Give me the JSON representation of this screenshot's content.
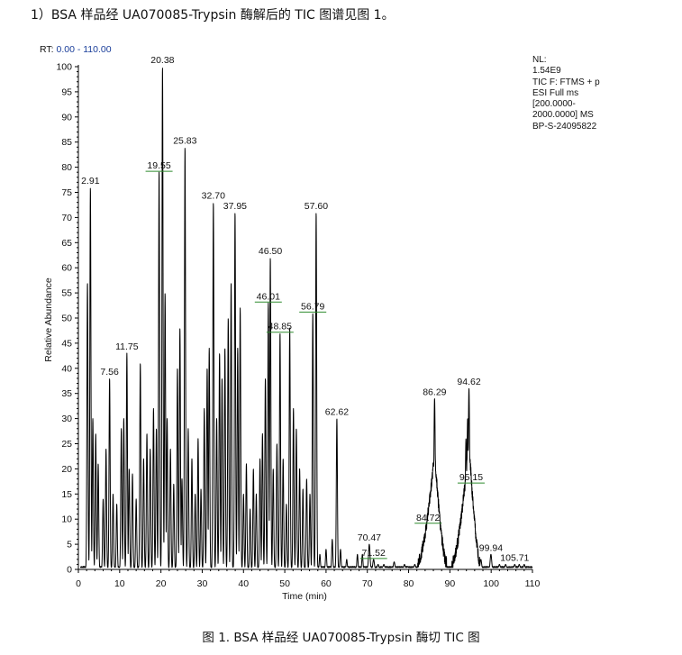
{
  "heading": "1）BSA 样品经 UA070085-Trypsin 酶解后的 TIC 图谱见图 1。",
  "caption": "图 1. BSA 样品经 UA070085-Trypsin 酶切 TIC 图",
  "rt_range": {
    "label": "RT:",
    "value": "0.00 - 110.00"
  },
  "info_block": [
    "NL:",
    "1.54E9",
    "TIC F: FTMS + p",
    "ESI Full ms",
    "[200.0000-",
    "2000.0000] MS",
    "BP-S-24095822"
  ],
  "chart_data": {
    "type": "line",
    "xlabel": "Time (min)",
    "ylabel": "Relative Abundance",
    "xlim": [
      0,
      110
    ],
    "ylim": [
      0,
      100
    ],
    "x_ticks": [
      "0",
      "10",
      "20",
      "30",
      "40",
      "50",
      "60",
      "70",
      "80",
      "90",
      "100",
      "110"
    ],
    "y_ticks": [
      "0",
      "5",
      "10",
      "15",
      "20",
      "25",
      "30",
      "35",
      "40",
      "45",
      "50",
      "55",
      "60",
      "65",
      "70",
      "75",
      "80",
      "85",
      "90",
      "95",
      "100"
    ],
    "grid": false,
    "legend": "none",
    "line_color": "#000000",
    "annotation_color": "#2e8b2e",
    "labeled_peaks": [
      {
        "label": "2.91",
        "rt": 2.91,
        "abundance": 76,
        "shaded": false
      },
      {
        "label": "7.56",
        "rt": 7.56,
        "abundance": 38,
        "shaded": false
      },
      {
        "label": "11.75",
        "rt": 11.75,
        "abundance": 43,
        "shaded": false
      },
      {
        "label": "19.55",
        "rt": 19.55,
        "abundance": 79,
        "shaded": true
      },
      {
        "label": "20.38",
        "rt": 20.38,
        "abundance": 100,
        "shaded": false
      },
      {
        "label": "25.83",
        "rt": 25.83,
        "abundance": 84,
        "shaded": false
      },
      {
        "label": "32.70",
        "rt": 32.7,
        "abundance": 73,
        "shaded": false
      },
      {
        "label": "37.95",
        "rt": 37.95,
        "abundance": 71,
        "shaded": false
      },
      {
        "label": "46.01",
        "rt": 46.01,
        "abundance": 53,
        "shaded": true
      },
      {
        "label": "46.50",
        "rt": 46.5,
        "abundance": 62,
        "shaded": false
      },
      {
        "label": "48.85",
        "rt": 48.85,
        "abundance": 47,
        "shaded": true
      },
      {
        "label": "56.79",
        "rt": 56.79,
        "abundance": 51,
        "shaded": true
      },
      {
        "label": "57.60",
        "rt": 57.6,
        "abundance": 71,
        "shaded": false
      },
      {
        "label": "62.62",
        "rt": 62.62,
        "abundance": 30,
        "shaded": false
      },
      {
        "label": "70.47",
        "rt": 70.47,
        "abundance": 5,
        "shaded": false
      },
      {
        "label": "71.52",
        "rt": 71.52,
        "abundance": 2,
        "shaded": true
      },
      {
        "label": "84.72",
        "rt": 84.72,
        "abundance": 9,
        "shaded": true
      },
      {
        "label": "86.29",
        "rt": 86.29,
        "abundance": 34,
        "shaded": false
      },
      {
        "label": "94.62",
        "rt": 94.62,
        "abundance": 36,
        "shaded": false
      },
      {
        "label": "95.15",
        "rt": 95.15,
        "abundance": 17,
        "shaded": true
      },
      {
        "label": "99.94",
        "rt": 99.94,
        "abundance": 3,
        "shaded": false
      },
      {
        "label": "105.71",
        "rt": 105.71,
        "abundance": 1,
        "shaded": false
      }
    ],
    "minor_peaks": [
      [
        2.2,
        57
      ],
      [
        3.5,
        30
      ],
      [
        4.2,
        27
      ],
      [
        4.8,
        21
      ],
      [
        6.0,
        14
      ],
      [
        6.7,
        24
      ],
      [
        8.4,
        15
      ],
      [
        9.3,
        13
      ],
      [
        10.4,
        28
      ],
      [
        11.0,
        30
      ],
      [
        12.3,
        20
      ],
      [
        13.1,
        19
      ],
      [
        14.0,
        14
      ],
      [
        15.0,
        41
      ],
      [
        15.8,
        22
      ],
      [
        16.6,
        27
      ],
      [
        17.4,
        24
      ],
      [
        18.2,
        32
      ],
      [
        18.9,
        28
      ],
      [
        21.0,
        55
      ],
      [
        21.5,
        30
      ],
      [
        22.3,
        24
      ],
      [
        23.1,
        17
      ],
      [
        24.0,
        40
      ],
      [
        24.6,
        48
      ],
      [
        25.1,
        18
      ],
      [
        26.6,
        28
      ],
      [
        27.5,
        22
      ],
      [
        28.3,
        15
      ],
      [
        29.0,
        26
      ],
      [
        29.7,
        16
      ],
      [
        30.5,
        32
      ],
      [
        31.2,
        40
      ],
      [
        31.7,
        44
      ],
      [
        33.5,
        30
      ],
      [
        34.2,
        43
      ],
      [
        34.8,
        38
      ],
      [
        35.5,
        44
      ],
      [
        36.3,
        50
      ],
      [
        37.0,
        57
      ],
      [
        38.6,
        44
      ],
      [
        39.2,
        52
      ],
      [
        40.0,
        15
      ],
      [
        40.7,
        21
      ],
      [
        41.6,
        12
      ],
      [
        42.4,
        20
      ],
      [
        43.1,
        15
      ],
      [
        44.0,
        22
      ],
      [
        44.6,
        27
      ],
      [
        45.3,
        38
      ],
      [
        47.2,
        20
      ],
      [
        48.1,
        25
      ],
      [
        49.6,
        22
      ],
      [
        50.4,
        13
      ],
      [
        51.2,
        48
      ],
      [
        52.1,
        32
      ],
      [
        52.8,
        28
      ],
      [
        53.6,
        20
      ],
      [
        54.4,
        16
      ],
      [
        55.3,
        18
      ],
      [
        56.1,
        15
      ],
      [
        58.5,
        3
      ],
      [
        60.0,
        4
      ],
      [
        61.5,
        6
      ],
      [
        63.5,
        4
      ],
      [
        65.0,
        2
      ],
      [
        67.6,
        3
      ],
      [
        68.8,
        3
      ],
      [
        72.6,
        1
      ],
      [
        74.0,
        1
      ],
      [
        76.5,
        1.5
      ],
      [
        79.0,
        1
      ],
      [
        81.5,
        1
      ],
      [
        85.4,
        8
      ],
      [
        93.4,
        12
      ],
      [
        93.9,
        26
      ],
      [
        94.3,
        30
      ],
      [
        95.5,
        14
      ],
      [
        96.0,
        10
      ],
      [
        97.5,
        2
      ],
      [
        102.0,
        1
      ],
      [
        103.5,
        1
      ],
      [
        106.8,
        1
      ],
      [
        108.0,
        1
      ]
    ],
    "humps": [
      {
        "start": 82.2,
        "peak": 86.29,
        "end": 89.2,
        "level": 22
      },
      {
        "start": 90.5,
        "peak": 94.62,
        "end": 97.4,
        "level": 24
      }
    ]
  }
}
